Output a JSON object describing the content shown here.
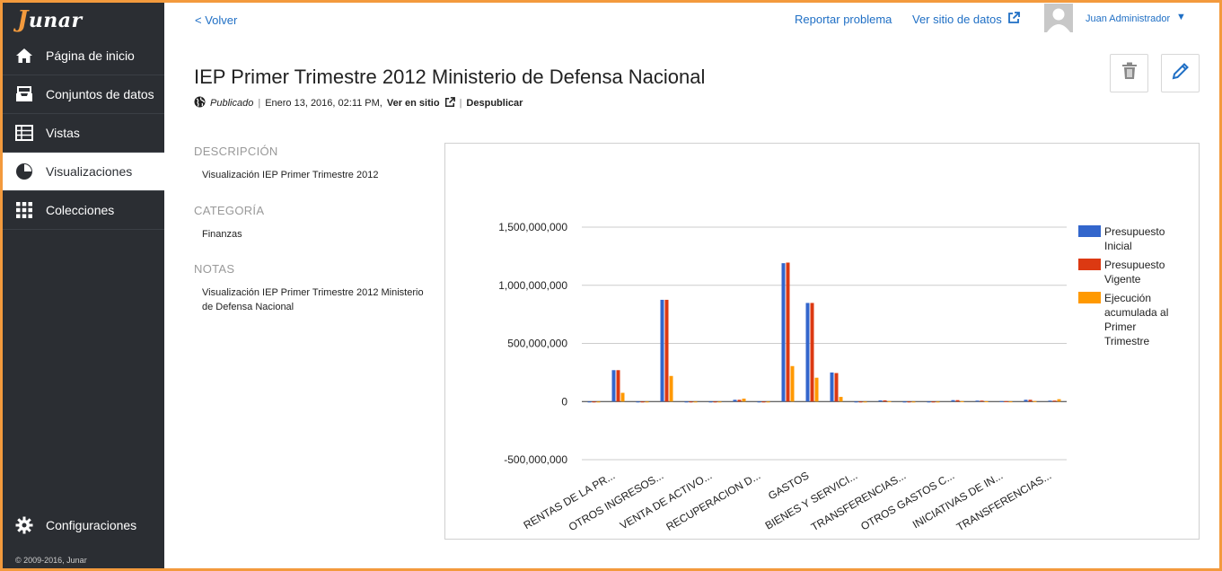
{
  "sidebar": {
    "logo": "junar",
    "items": [
      {
        "label": "Página de inicio",
        "icon": "home-icon"
      },
      {
        "label": "Conjuntos de datos",
        "icon": "inbox-icon"
      },
      {
        "label": "Vistas",
        "icon": "table-icon"
      },
      {
        "label": "Visualizaciones",
        "icon": "pie-chart-icon",
        "active": true
      },
      {
        "label": "Colecciones",
        "icon": "grid-icon"
      }
    ],
    "settings_label": "Configuraciones",
    "copyright": "© 2009-2016, Junar"
  },
  "header": {
    "back_label": "< Volver",
    "report_label": "Reportar problema",
    "site_label": "Ver sitio de datos",
    "user_name": "Juan Administrador",
    "user_caret": "▼"
  },
  "page": {
    "title": "IEP Primer Trimestre 2012 Ministerio de Defensa Nacional",
    "status": "Publicado",
    "date": "Enero 13, 2016, 02:11 PM,",
    "view_label": "Ver en sitio",
    "unpublish_label": "Despublicar"
  },
  "info": {
    "description_label": "DESCRIPCIÓN",
    "description": "Visualización IEP Primer Trimestre 2012",
    "category_label": "CATEGORÍA",
    "category": "Finanzas",
    "notes_label": "NOTAS",
    "notes": "Visualización IEP Primer Trimestre 2012 Ministerio de Defensa Nacional"
  },
  "colors": {
    "accent": "#1f6fc5",
    "sidebar": "#2b2e33",
    "frame": "#f39a3d"
  },
  "chart_data": {
    "type": "bar",
    "title": "",
    "xlabel": "",
    "ylabel": "",
    "ylim": [
      -500000000,
      1500000000
    ],
    "yticks": [
      "1,500,000,000",
      "1,000,000,000",
      "500,000,000",
      "0",
      "-500,000,000"
    ],
    "ytick_values": [
      1500000000,
      1000000000,
      500000000,
      0,
      -500000000
    ],
    "legend_position": "right",
    "category_labels": [
      "RENTAS DE LA PR...",
      "OTROS INGRESOS...",
      "VENTA DE ACTIVO...",
      "RECUPERACION D...",
      "GASTOS",
      "BIENES Y SERVICI...",
      "TRANSFERENCIAS...",
      "OTROS GASTOS C...",
      "INICIATIVAS DE IN...",
      "TRANSFERENCIAS..."
    ],
    "series": [
      {
        "name": "Presupuesto Inicial",
        "color": "#3366cc",
        "values": [
          0,
          270000000,
          0,
          875000000,
          0,
          -3000000,
          15000000,
          0,
          1190000000,
          848000000,
          250000000,
          0,
          10000000,
          0,
          0,
          12000000,
          8000000,
          3000000,
          15000000,
          8000000
        ]
      },
      {
        "name": "Presupuesto Vigente",
        "color": "#dc3912",
        "values": [
          0,
          270000000,
          0,
          875000000,
          0,
          -3000000,
          15000000,
          0,
          1195000000,
          848000000,
          245000000,
          0,
          10000000,
          0,
          0,
          12000000,
          8000000,
          3000000,
          15000000,
          8000000
        ]
      },
      {
        "name": "Ejecución acumulada al Primer Trimestre",
        "color": "#ff9900",
        "values": [
          0,
          75000000,
          0,
          220000000,
          0,
          0,
          25000000,
          0,
          305000000,
          205000000,
          40000000,
          0,
          3000000,
          0,
          0,
          3000000,
          2000000,
          1000000,
          4000000,
          20000000
        ]
      }
    ]
  }
}
